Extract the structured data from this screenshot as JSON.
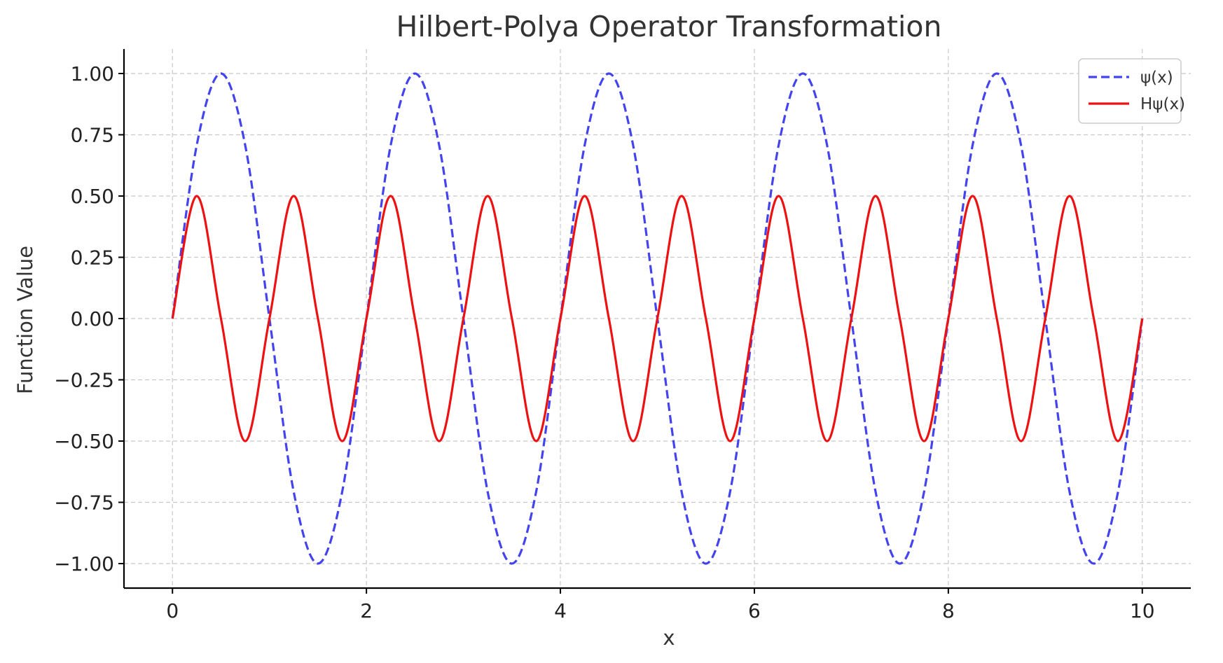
{
  "chart_data": {
    "type": "line",
    "title": "Hilbert-Polya Operator Transformation",
    "xlabel": "x",
    "ylabel": "Function Value",
    "xlim": [
      -0.5,
      10.5
    ],
    "ylim": [
      -1.1,
      1.1
    ],
    "grid": true,
    "legend_position": "top-right",
    "xticks": [
      0,
      2,
      4,
      6,
      8,
      10
    ],
    "xtick_labels": [
      "0",
      "2",
      "4",
      "6",
      "8",
      "10"
    ],
    "yticks": [
      1.0,
      0.75,
      0.5,
      0.25,
      0.0,
      -0.25,
      -0.5,
      -0.75,
      -1.0
    ],
    "ytick_labels": [
      "1.00",
      "0.75",
      "0.50",
      "0.25",
      "0.00",
      "−0.25",
      "−0.50",
      "−0.75",
      "−1.00"
    ],
    "x": [
      0,
      0.25,
      0.5,
      0.75,
      1,
      1.25,
      1.5,
      1.75,
      2,
      2.25,
      2.5,
      2.75,
      3,
      3.25,
      3.5,
      3.75,
      4,
      4.25,
      4.5,
      4.75,
      5,
      5.25,
      5.5,
      5.75,
      6,
      6.25,
      6.5,
      6.75,
      7,
      7.25,
      7.5,
      7.75,
      8,
      8.25,
      8.5,
      8.75,
      9,
      9.25,
      9.5,
      9.75,
      10
    ],
    "series": [
      {
        "name": "ψ(x)",
        "color": "#4444ee",
        "style": "dashed",
        "values": [
          0,
          0.707,
          1,
          0.707,
          0,
          -0.707,
          -1,
          -0.707,
          0,
          0.707,
          1,
          0.707,
          0,
          -0.707,
          -1,
          -0.707,
          0,
          0.707,
          1,
          0.707,
          0,
          -0.707,
          -1,
          -0.707,
          0,
          0.707,
          1,
          0.707,
          0,
          -0.707,
          -1,
          -0.707,
          0,
          0.707,
          1,
          0.707,
          0,
          -0.707,
          -1,
          -0.707,
          0
        ]
      },
      {
        "name": "Hψ(x)",
        "color": "#ee1111",
        "style": "solid",
        "values": [
          0,
          0.5,
          0,
          -0.5,
          0,
          0.5,
          0,
          -0.5,
          0,
          0.5,
          0,
          -0.5,
          0,
          0.5,
          0,
          -0.5,
          0,
          0.5,
          0,
          -0.5,
          0,
          0.5,
          0,
          -0.5,
          0,
          0.5,
          0,
          -0.5,
          0,
          0.5,
          0,
          -0.5,
          0,
          0.5,
          0,
          -0.5,
          0,
          0.5,
          0,
          -0.5,
          0
        ]
      }
    ]
  }
}
